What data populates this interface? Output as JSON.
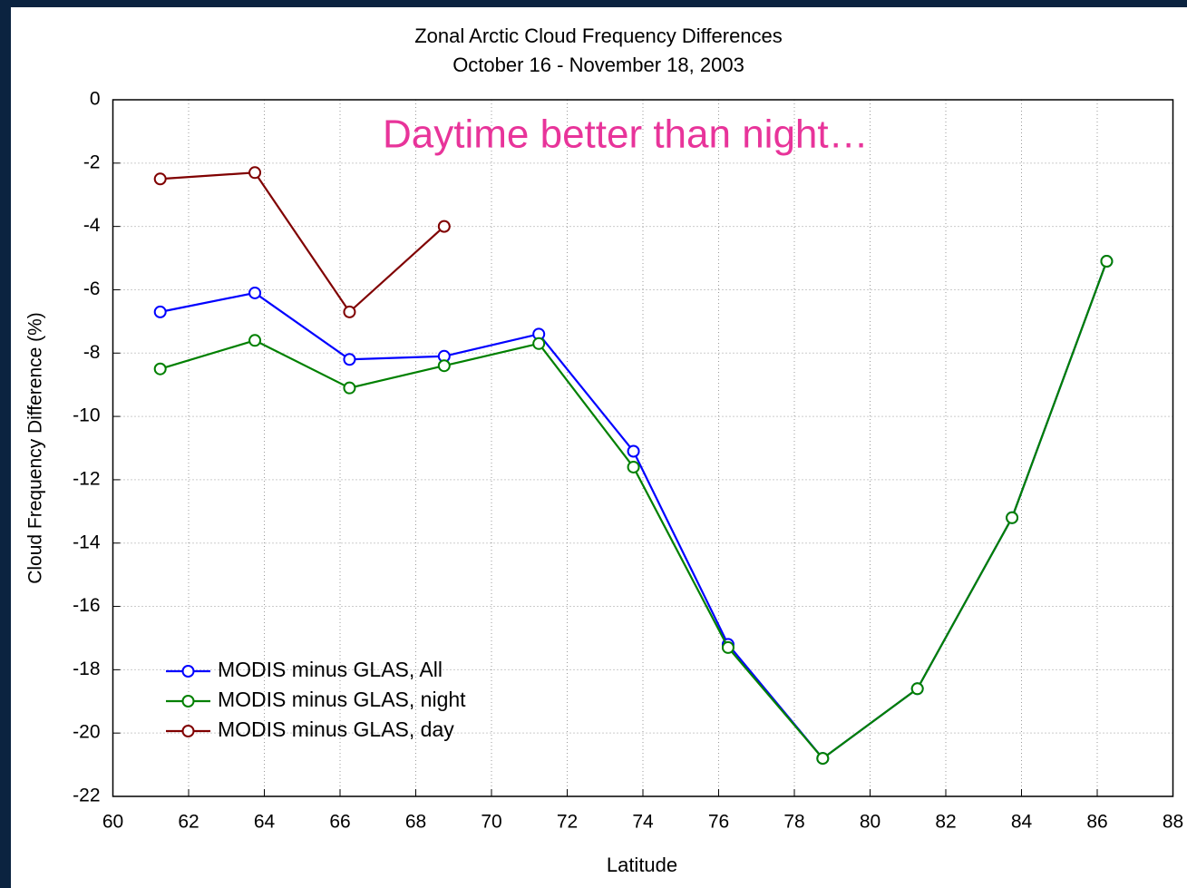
{
  "chart_data": {
    "type": "line",
    "title": "Zonal Arctic Cloud Frequency Differences",
    "subtitle": "October 16 - November 18, 2003",
    "annotation": "Daytime better than night…",
    "xlabel": "Latitude",
    "ylabel": "Cloud Frequency Difference (%)",
    "x": [
      61.25,
      63.75,
      66.25,
      68.75,
      71.25,
      73.75,
      76.25,
      78.75,
      81.25,
      83.75,
      86.25
    ],
    "series": [
      {
        "name": "MODIS minus GLAS, All",
        "color": "#0000ff",
        "values": [
          -6.7,
          -6.1,
          -8.2,
          -8.1,
          -7.4,
          -11.1,
          -17.2,
          -20.8,
          -18.6,
          -13.2,
          -5.1
        ]
      },
      {
        "name": "MODIS minus GLAS, night",
        "color": "#008000",
        "values": [
          -8.5,
          -7.6,
          -9.1,
          -8.4,
          -7.7,
          -11.6,
          -17.3,
          -20.8,
          -18.6,
          -13.2,
          -5.1
        ]
      },
      {
        "name": "MODIS minus GLAS, day",
        "color": "#800000",
        "values": [
          -2.5,
          -2.3,
          -6.7,
          -4.0,
          null,
          null,
          null,
          null,
          null,
          null,
          null
        ]
      }
    ],
    "xlim": [
      60,
      88
    ],
    "xticks": [
      60,
      62,
      64,
      66,
      68,
      70,
      72,
      74,
      76,
      78,
      80,
      82,
      84,
      86,
      88
    ],
    "ylim": [
      -22,
      0
    ],
    "yticks": [
      0,
      -2,
      -4,
      -6,
      -8,
      -10,
      -12,
      -14,
      -16,
      -18,
      -20,
      -22
    ],
    "grid": true,
    "legend": "lower left",
    "annotation_color": "#e8349a"
  }
}
